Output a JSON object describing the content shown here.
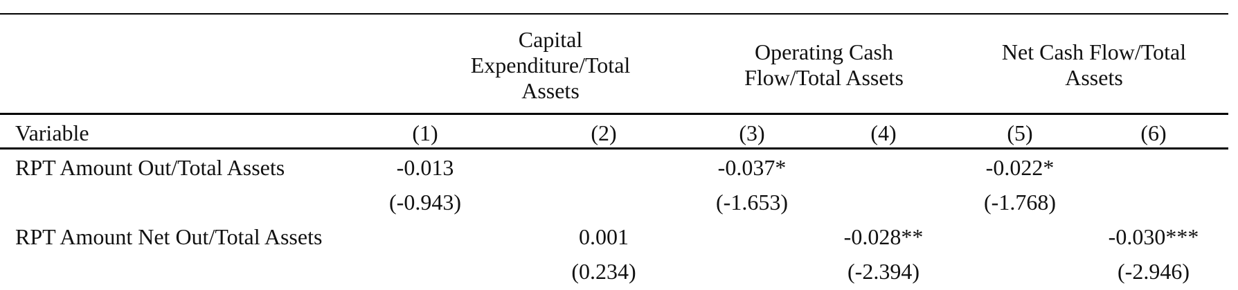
{
  "table": {
    "groups": [
      {
        "lines": [
          "Capital",
          "Expenditure/Total",
          "Assets"
        ]
      },
      {
        "lines": [
          "Operating Cash",
          "Flow/Total Assets"
        ]
      },
      {
        "lines": [
          "Net Cash Flow/Total",
          "Assets"
        ]
      }
    ],
    "header": {
      "variable": "Variable",
      "columns": [
        "(1)",
        "(2)",
        "(3)",
        "(4)",
        "(5)",
        "(6)"
      ]
    },
    "rows": [
      {
        "label": "RPT Amount Out/Total Assets",
        "coef": [
          "-0.013",
          "",
          "-0.037*",
          "",
          "-0.022*",
          ""
        ],
        "tstat": [
          "(-0.943)",
          "",
          "(-1.653)",
          "",
          "(-1.768)",
          ""
        ]
      },
      {
        "label": "RPT Amount Net Out/Total Assets",
        "coef": [
          "",
          "0.001",
          "",
          "-0.028**",
          "",
          "-0.030***"
        ],
        "tstat": [
          "",
          "(0.234)",
          "",
          "(-2.394)",
          "",
          "(-2.946)"
        ]
      }
    ]
  }
}
